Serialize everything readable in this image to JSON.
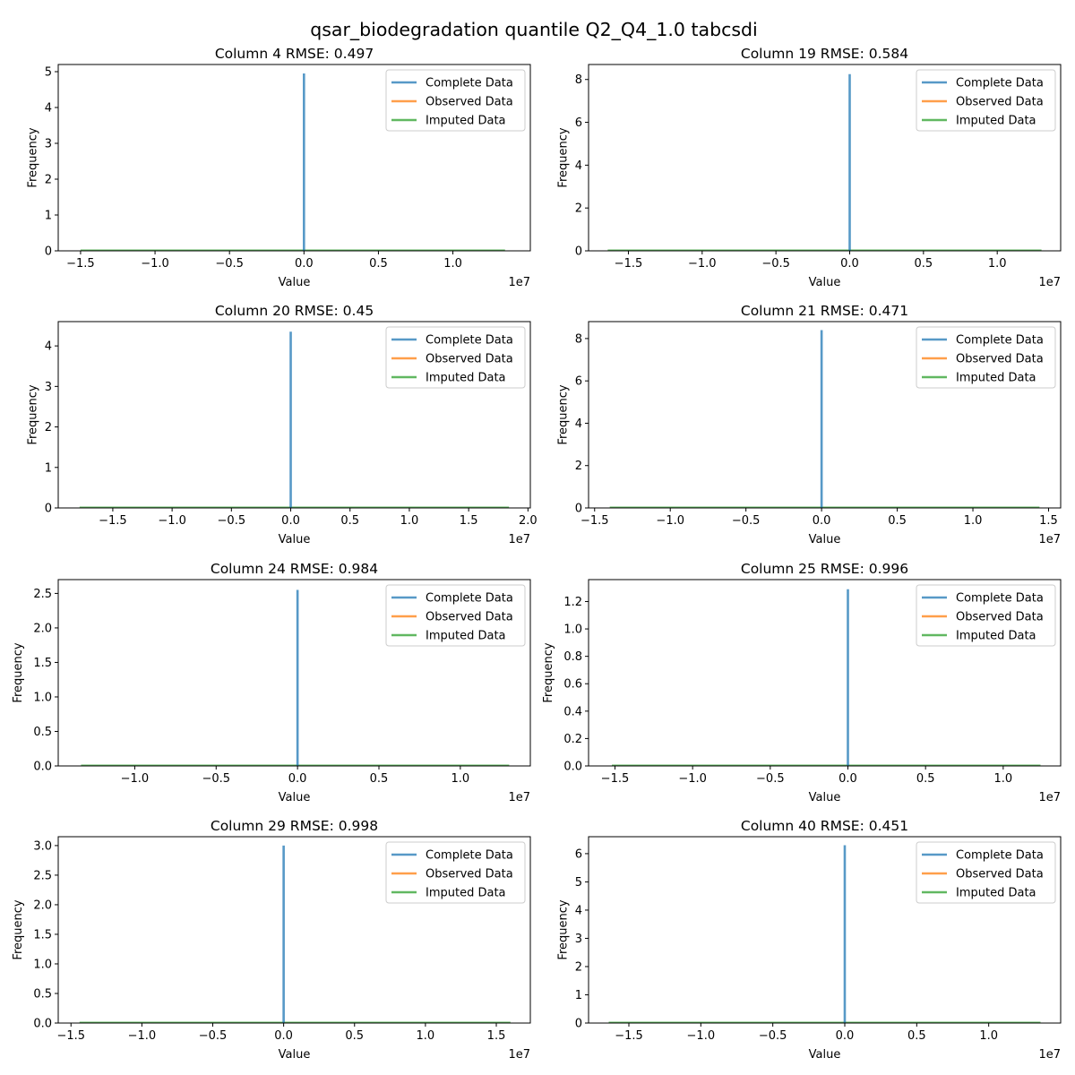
{
  "figure": {
    "title": "qsar_biodegradation quantile Q2_Q4_1.0 tabcsdi"
  },
  "legend_entries": [
    {
      "name": "Complete Data",
      "color": "#1f77b4"
    },
    {
      "name": "Observed Data",
      "color": "#ff7f0e"
    },
    {
      "name": "Imputed Data",
      "color": "#2ca02c"
    }
  ],
  "chart_data": [
    {
      "type": "line",
      "title": "Column 4 RMSE: 0.497",
      "xlabel": "Value",
      "ylabel": "Frequency",
      "x_offset_label": "1e7",
      "xlim": [
        -1.65,
        1.52
      ],
      "ylim": [
        0,
        5.2
      ],
      "xticks": [
        -1.5,
        -1.0,
        -0.5,
        0.0,
        0.5,
        1.0
      ],
      "xtick_labels": [
        "−1.5",
        "−1.0",
        "−0.5",
        "0.0",
        "0.5",
        "1.0"
      ],
      "yticks": [
        0,
        1,
        2,
        3,
        4,
        5
      ],
      "ytick_labels": [
        "0",
        "1",
        "2",
        "3",
        "4",
        "5"
      ],
      "legend": "top-right",
      "grid": false,
      "baseline_x": [
        -1.5,
        1.35
      ],
      "series": [
        {
          "name": "Complete Data",
          "x": [
            0.0
          ],
          "y": [
            4.95
          ]
        },
        {
          "name": "Observed Data",
          "x": [],
          "y": []
        },
        {
          "name": "Imputed Data",
          "x": [],
          "y": []
        }
      ]
    },
    {
      "type": "line",
      "title": "Column 19 RMSE: 0.584",
      "xlabel": "Value",
      "ylabel": "Frequency",
      "x_offset_label": "1e7",
      "xlim": [
        -1.77,
        1.43
      ],
      "ylim": [
        0,
        8.7
      ],
      "xticks": [
        -1.5,
        -1.0,
        -0.5,
        0.0,
        0.5,
        1.0
      ],
      "xtick_labels": [
        "−1.5",
        "−1.0",
        "−0.5",
        "0.0",
        "0.5",
        "1.0"
      ],
      "yticks": [
        0,
        2,
        4,
        6,
        8
      ],
      "ytick_labels": [
        "0",
        "2",
        "4",
        "6",
        "8"
      ],
      "legend": "top-right",
      "grid": false,
      "baseline_x": [
        -1.64,
        1.3
      ],
      "series": [
        {
          "name": "Complete Data",
          "x": [
            0.0
          ],
          "y": [
            8.25
          ]
        },
        {
          "name": "Observed Data",
          "x": [],
          "y": []
        },
        {
          "name": "Imputed Data",
          "x": [],
          "y": []
        }
      ]
    },
    {
      "type": "line",
      "title": "Column 20 RMSE: 0.45",
      "xlabel": "Value",
      "ylabel": "Frequency",
      "x_offset_label": "1e7",
      "xlim": [
        -1.96,
        2.02
      ],
      "ylim": [
        0,
        4.6
      ],
      "xticks": [
        -1.5,
        -1.0,
        -0.5,
        0.0,
        0.5,
        1.0,
        1.5,
        2.0
      ],
      "xtick_labels": [
        "−1.5",
        "−1.0",
        "−0.5",
        "0.0",
        "0.5",
        "1.0",
        "1.5",
        "2.0"
      ],
      "yticks": [
        0,
        1,
        2,
        3,
        4
      ],
      "ytick_labels": [
        "0",
        "1",
        "2",
        "3",
        "4"
      ],
      "legend": "top-right",
      "grid": false,
      "baseline_x": [
        -1.78,
        1.84
      ],
      "series": [
        {
          "name": "Complete Data",
          "x": [
            0.0
          ],
          "y": [
            4.35
          ]
        },
        {
          "name": "Observed Data",
          "x": [],
          "y": []
        },
        {
          "name": "Imputed Data",
          "x": [],
          "y": []
        }
      ]
    },
    {
      "type": "line",
      "title": "Column 21 RMSE: 0.471",
      "xlabel": "Value",
      "ylabel": "Frequency",
      "x_offset_label": "1e7",
      "xlim": [
        -1.54,
        1.58
      ],
      "ylim": [
        0,
        8.8
      ],
      "xticks": [
        -1.5,
        -1.0,
        -0.5,
        0.0,
        0.5,
        1.0,
        1.5
      ],
      "xtick_labels": [
        "−1.5",
        "−1.0",
        "−0.5",
        "0.0",
        "0.5",
        "1.0",
        "1.5"
      ],
      "yticks": [
        0,
        2,
        4,
        6,
        8
      ],
      "ytick_labels": [
        "0",
        "2",
        "4",
        "6",
        "8"
      ],
      "legend": "top-right",
      "grid": false,
      "baseline_x": [
        -1.4,
        1.44
      ],
      "series": [
        {
          "name": "Complete Data",
          "x": [
            0.0
          ],
          "y": [
            8.4
          ]
        },
        {
          "name": "Observed Data",
          "x": [],
          "y": []
        },
        {
          "name": "Imputed Data",
          "x": [],
          "y": []
        }
      ]
    },
    {
      "type": "line",
      "title": "Column 24 RMSE: 0.984",
      "xlabel": "Value",
      "ylabel": "Frequency",
      "x_offset_label": "1e7",
      "xlim": [
        -1.47,
        1.43
      ],
      "ylim": [
        0,
        2.7
      ],
      "xticks": [
        -1.0,
        -0.5,
        0.0,
        0.5,
        1.0
      ],
      "xtick_labels": [
        "−1.0",
        "−0.5",
        "0.0",
        "0.5",
        "1.0"
      ],
      "yticks": [
        0.0,
        0.5,
        1.0,
        1.5,
        2.0,
        2.5
      ],
      "ytick_labels": [
        "0.0",
        "0.5",
        "1.0",
        "1.5",
        "2.0",
        "2.5"
      ],
      "legend": "top-right",
      "grid": false,
      "baseline_x": [
        -1.33,
        1.3
      ],
      "series": [
        {
          "name": "Complete Data",
          "x": [
            0.0
          ],
          "y": [
            2.55
          ]
        },
        {
          "name": "Observed Data",
          "x": [],
          "y": []
        },
        {
          "name": "Imputed Data",
          "x": [],
          "y": []
        }
      ]
    },
    {
      "type": "line",
      "title": "Column 25 RMSE: 0.996",
      "xlabel": "Value",
      "ylabel": "Frequency",
      "x_offset_label": "1e7",
      "xlim": [
        -1.67,
        1.37
      ],
      "ylim": [
        0,
        1.36
      ],
      "xticks": [
        -1.5,
        -1.0,
        -0.5,
        0.0,
        0.5,
        1.0
      ],
      "xtick_labels": [
        "−1.5",
        "−1.0",
        "−0.5",
        "0.0",
        "0.5",
        "1.0"
      ],
      "yticks": [
        0.0,
        0.2,
        0.4,
        0.6,
        0.8,
        1.0,
        1.2
      ],
      "ytick_labels": [
        "0.0",
        "0.2",
        "0.4",
        "0.6",
        "0.8",
        "1.0",
        "1.2"
      ],
      "legend": "top-right",
      "grid": false,
      "baseline_x": [
        -1.52,
        1.24
      ],
      "series": [
        {
          "name": "Complete Data",
          "x": [
            0.0
          ],
          "y": [
            1.29
          ]
        },
        {
          "name": "Observed Data",
          "x": [],
          "y": []
        },
        {
          "name": "Imputed Data",
          "x": [],
          "y": []
        }
      ]
    },
    {
      "type": "line",
      "title": "Column 29 RMSE: 0.998",
      "xlabel": "Value",
      "ylabel": "Frequency",
      "x_offset_label": "1e7",
      "xlim": [
        -1.59,
        1.74
      ],
      "ylim": [
        0,
        3.15
      ],
      "xticks": [
        -1.5,
        -1.0,
        -0.5,
        0.0,
        0.5,
        1.0,
        1.5
      ],
      "xtick_labels": [
        "−1.5",
        "−1.0",
        "−0.5",
        "0.0",
        "0.5",
        "1.0",
        "1.5"
      ],
      "yticks": [
        0.0,
        0.5,
        1.0,
        1.5,
        2.0,
        2.5,
        3.0
      ],
      "ytick_labels": [
        "0.0",
        "0.5",
        "1.0",
        "1.5",
        "2.0",
        "2.5",
        "3.0"
      ],
      "legend": "top-right",
      "grid": false,
      "baseline_x": [
        -1.44,
        1.6
      ],
      "series": [
        {
          "name": "Complete Data",
          "x": [
            0.0
          ],
          "y": [
            3.0
          ]
        },
        {
          "name": "Observed Data",
          "x": [],
          "y": []
        },
        {
          "name": "Imputed Data",
          "x": [],
          "y": []
        }
      ]
    },
    {
      "type": "line",
      "title": "Column 40 RMSE: 0.451",
      "xlabel": "Value",
      "ylabel": "Frequency",
      "x_offset_label": "1e7",
      "xlim": [
        -1.78,
        1.5
      ],
      "ylim": [
        0,
        6.6
      ],
      "xticks": [
        -1.5,
        -1.0,
        -0.5,
        0.0,
        0.5,
        1.0
      ],
      "xtick_labels": [
        "−1.5",
        "−1.0",
        "−0.5",
        "0.0",
        "0.5",
        "1.0"
      ],
      "yticks": [
        0,
        1,
        2,
        3,
        4,
        5,
        6
      ],
      "ytick_labels": [
        "0",
        "1",
        "2",
        "3",
        "4",
        "5",
        "6"
      ],
      "legend": "top-right",
      "grid": false,
      "baseline_x": [
        -1.64,
        1.36
      ],
      "series": [
        {
          "name": "Complete Data",
          "x": [
            0.0
          ],
          "y": [
            6.3
          ]
        },
        {
          "name": "Observed Data",
          "x": [],
          "y": []
        },
        {
          "name": "Imputed Data",
          "x": [],
          "y": []
        }
      ]
    }
  ]
}
